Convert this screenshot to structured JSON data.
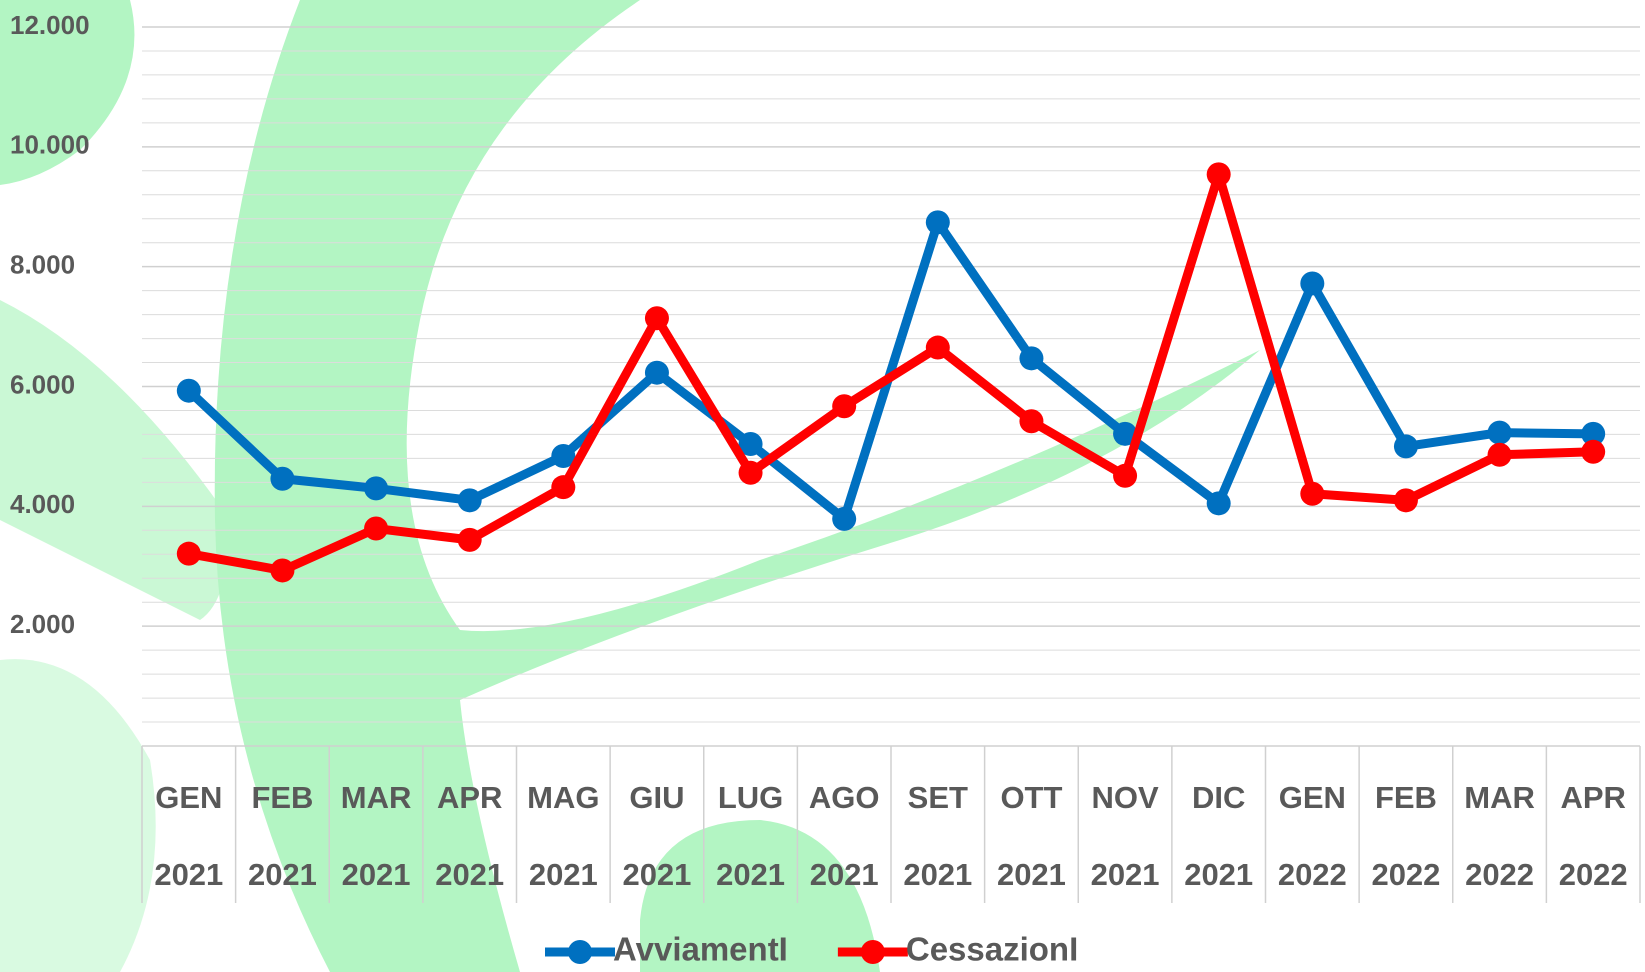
{
  "chart_data": {
    "type": "line",
    "categories": [
      [
        "GEN",
        "2021"
      ],
      [
        "FEB",
        "2021"
      ],
      [
        "MAR",
        "2021"
      ],
      [
        "APR",
        "2021"
      ],
      [
        "MAG",
        "2021"
      ],
      [
        "GIU",
        "2021"
      ],
      [
        "LUG",
        "2021"
      ],
      [
        "AGO",
        "2021"
      ],
      [
        "SET",
        "2021"
      ],
      [
        "OTT",
        "2021"
      ],
      [
        "NOV",
        "2021"
      ],
      [
        "DIC",
        "2021"
      ],
      [
        "GEN",
        "2022"
      ],
      [
        "FEB",
        "2022"
      ],
      [
        "MAR",
        "2022"
      ],
      [
        "APR",
        "2022"
      ]
    ],
    "series": [
      {
        "name": "AvviamentI",
        "color": "#0070c0",
        "values": [
          5930,
          4460,
          4300,
          4100,
          4840,
          6230,
          5040,
          3790,
          8740,
          6470,
          5210,
          4050,
          7720,
          5000,
          5230,
          5210
        ]
      },
      {
        "name": "CessazionI",
        "color": "#ff0000",
        "values": [
          3210,
          2930,
          3630,
          3440,
          4320,
          7140,
          4560,
          5670,
          6650,
          5420,
          4510,
          9540,
          4210,
          4100,
          4860,
          4910
        ]
      }
    ],
    "ylim": [
      0,
      12000
    ],
    "yticks": [
      {
        "value": 2000,
        "label": "2.000"
      },
      {
        "value": 4000,
        "label": "4.000"
      },
      {
        "value": 6000,
        "label": "6.000"
      },
      {
        "value": 8000,
        "label": "8.000"
      },
      {
        "value": 10000,
        "label": "10.000"
      },
      {
        "value": 12000,
        "label": "12.000"
      }
    ],
    "grid": true,
    "legend": "bottom"
  }
}
